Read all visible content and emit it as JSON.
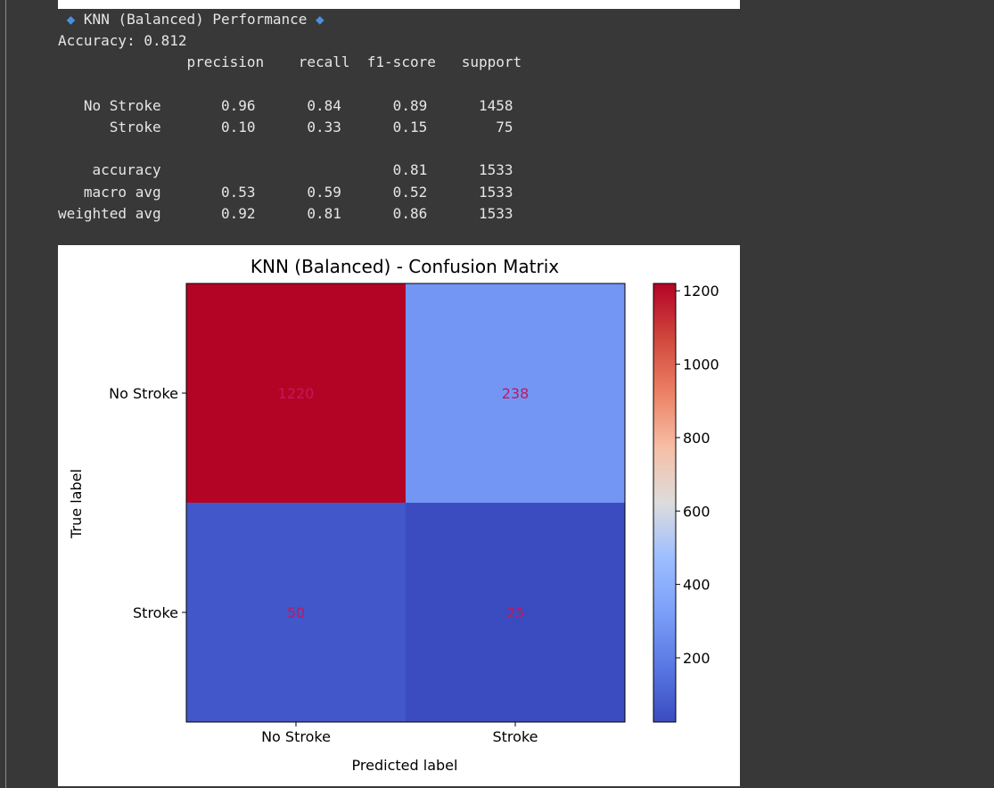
{
  "report": {
    "header_bullet": "◆",
    "header_text": "KNN (Balanced) Performance",
    "accuracy_line": "Accuracy: 0.812",
    "lines": [
      "               precision    recall  f1-score   support",
      "",
      "   No Stroke       0.96      0.84      0.89      1458",
      "      Stroke       0.10      0.33      0.15        75",
      "",
      "    accuracy                           0.81      1533",
      "   macro avg       0.53      0.59      0.52      1533",
      "weighted avg       0.92      0.81      0.86      1533"
    ]
  },
  "chart_data": {
    "type": "heatmap",
    "title": "KNN (Balanced) - Confusion Matrix",
    "xlabel": "Predicted label",
    "ylabel": "True label",
    "x_categories": [
      "No Stroke",
      "Stroke"
    ],
    "y_categories": [
      "No Stroke",
      "Stroke"
    ],
    "values": [
      [
        1220,
        238
      ],
      [
        50,
        25
      ]
    ],
    "colormap": "coolwarm",
    "annotation_color": "#c2185b",
    "colorbar": {
      "range": [
        25,
        1220
      ],
      "ticks": [
        200,
        400,
        600,
        800,
        1000,
        1200
      ]
    },
    "cell_colors": [
      [
        "#b40426",
        "#7396f5"
      ],
      [
        "#4257c9",
        "#3b4cc0"
      ]
    ],
    "grid": false
  }
}
